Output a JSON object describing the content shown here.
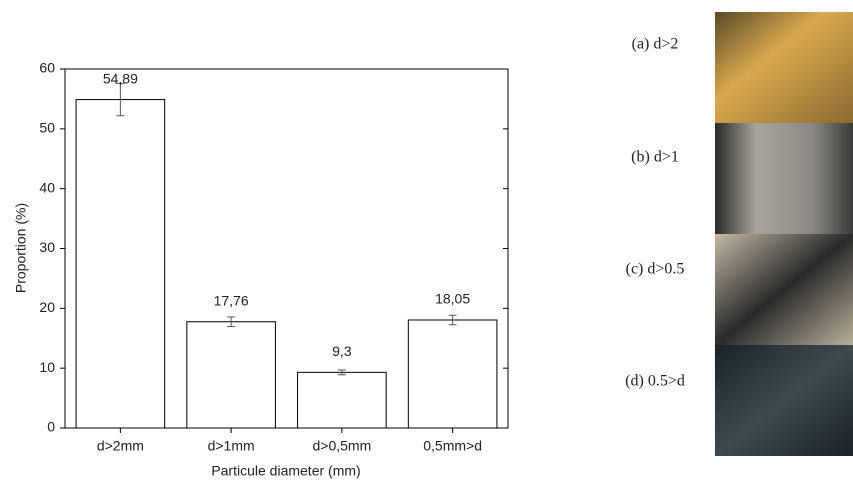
{
  "chart_data": {
    "type": "bar",
    "xlabel": "Particule diameter (mm)",
    "ylabel": "Proportion (%)",
    "categories": [
      "d>2mm",
      "d>1mm",
      "d>0,5mm",
      "0,5mm>d"
    ],
    "values": [
      54.89,
      17.76,
      9.3,
      18.05
    ],
    "value_labels": [
      "54,89",
      "17,76",
      "9,3",
      "18,05"
    ],
    "errors": [
      2.7,
      0.8,
      0.4,
      0.8
    ],
    "color": "#ffffff",
    "ylim": [
      0,
      60
    ],
    "yticks": [
      0,
      10,
      20,
      30,
      40,
      50,
      60
    ]
  },
  "photos": {
    "labels": [
      "(a) d>2",
      "(b) d>1",
      "(c) d>0.5",
      "(d) 0.5>d"
    ]
  }
}
